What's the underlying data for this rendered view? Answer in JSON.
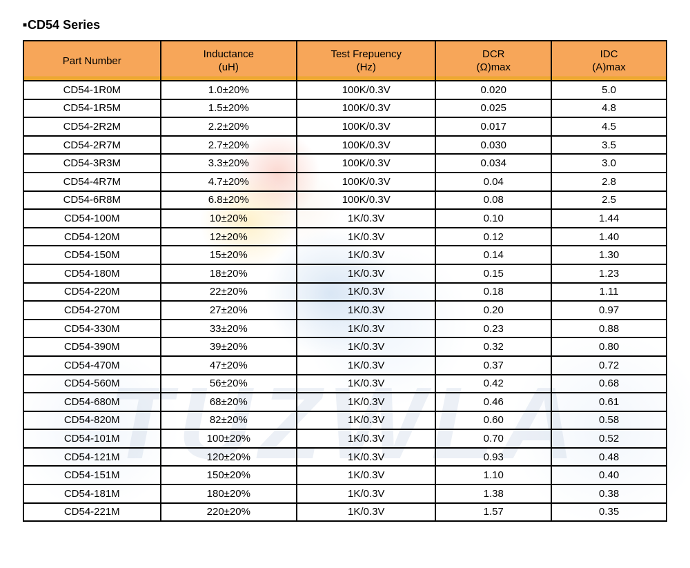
{
  "page": {
    "bullet": "■",
    "title": "CD54 Series"
  },
  "colors": {
    "header_bg": "#f7a659",
    "header_accent_line": "#eda832",
    "table_border": "#000000",
    "text": "#000000",
    "watermark_text_color": "#b9c8de"
  },
  "watermark": {
    "text": "TUZWLA"
  },
  "table": {
    "headers": [
      {
        "line1": "Part Number",
        "line2": ""
      },
      {
        "line1": "Inductance",
        "line2": "(uH)"
      },
      {
        "line1": "Test Frepuency",
        "line2": "(Hz)"
      },
      {
        "line1": "DCR",
        "line2": "(Ω)max"
      },
      {
        "line1": "IDC",
        "line2": "(A)max"
      }
    ],
    "rows": [
      [
        "CD54-1R0M",
        "1.0±20%",
        "100K/0.3V",
        "0.020",
        "5.0"
      ],
      [
        "CD54-1R5M",
        "1.5±20%",
        "100K/0.3V",
        "0.025",
        "4.8"
      ],
      [
        "CD54-2R2M",
        "2.2±20%",
        "100K/0.3V",
        "0.017",
        "4.5"
      ],
      [
        "CD54-2R7M",
        "2.7±20%",
        "100K/0.3V",
        "0.030",
        "3.5"
      ],
      [
        "CD54-3R3M",
        "3.3±20%",
        "100K/0.3V",
        "0.034",
        "3.0"
      ],
      [
        "CD54-4R7M",
        "4.7±20%",
        "100K/0.3V",
        "0.04",
        "2.8"
      ],
      [
        "CD54-6R8M",
        "6.8±20%",
        "100K/0.3V",
        "0.08",
        "2.5"
      ],
      [
        "CD54-100M",
        "10±20%",
        "1K/0.3V",
        "0.10",
        "1.44"
      ],
      [
        "CD54-120M",
        "12±20%",
        "1K/0.3V",
        "0.12",
        "1.40"
      ],
      [
        "CD54-150M",
        "15±20%",
        "1K/0.3V",
        "0.14",
        "1.30"
      ],
      [
        "CD54-180M",
        "18±20%",
        "1K/0.3V",
        "0.15",
        "1.23"
      ],
      [
        "CD54-220M",
        "22±20%",
        "1K/0.3V",
        "0.18",
        "1.11"
      ],
      [
        "CD54-270M",
        "27±20%",
        "1K/0.3V",
        "0.20",
        "0.97"
      ],
      [
        "CD54-330M",
        "33±20%",
        "1K/0.3V",
        "0.23",
        "0.88"
      ],
      [
        "CD54-390M",
        "39±20%",
        "1K/0.3V",
        "0.32",
        "0.80"
      ],
      [
        "CD54-470M",
        "47±20%",
        "1K/0.3V",
        "0.37",
        "0.72"
      ],
      [
        "CD54-560M",
        "56±20%",
        "1K/0.3V",
        "0.42",
        "0.68"
      ],
      [
        "CD54-680M",
        "68±20%",
        "1K/0.3V",
        "0.46",
        "0.61"
      ],
      [
        "CD54-820M",
        "82±20%",
        "1K/0.3V",
        "0.60",
        "0.58"
      ],
      [
        "CD54-101M",
        "100±20%",
        "1K/0.3V",
        "0.70",
        "0.52"
      ],
      [
        "CD54-121M",
        "120±20%",
        "1K/0.3V",
        "0.93",
        "0.48"
      ],
      [
        "CD54-151M",
        "150±20%",
        "1K/0.3V",
        "1.10",
        "0.40"
      ],
      [
        "CD54-181M",
        "180±20%",
        "1K/0.3V",
        "1.38",
        "0.38"
      ],
      [
        "CD54-221M",
        "220±20%",
        "1K/0.3V",
        "1.57",
        "0.35"
      ]
    ]
  }
}
